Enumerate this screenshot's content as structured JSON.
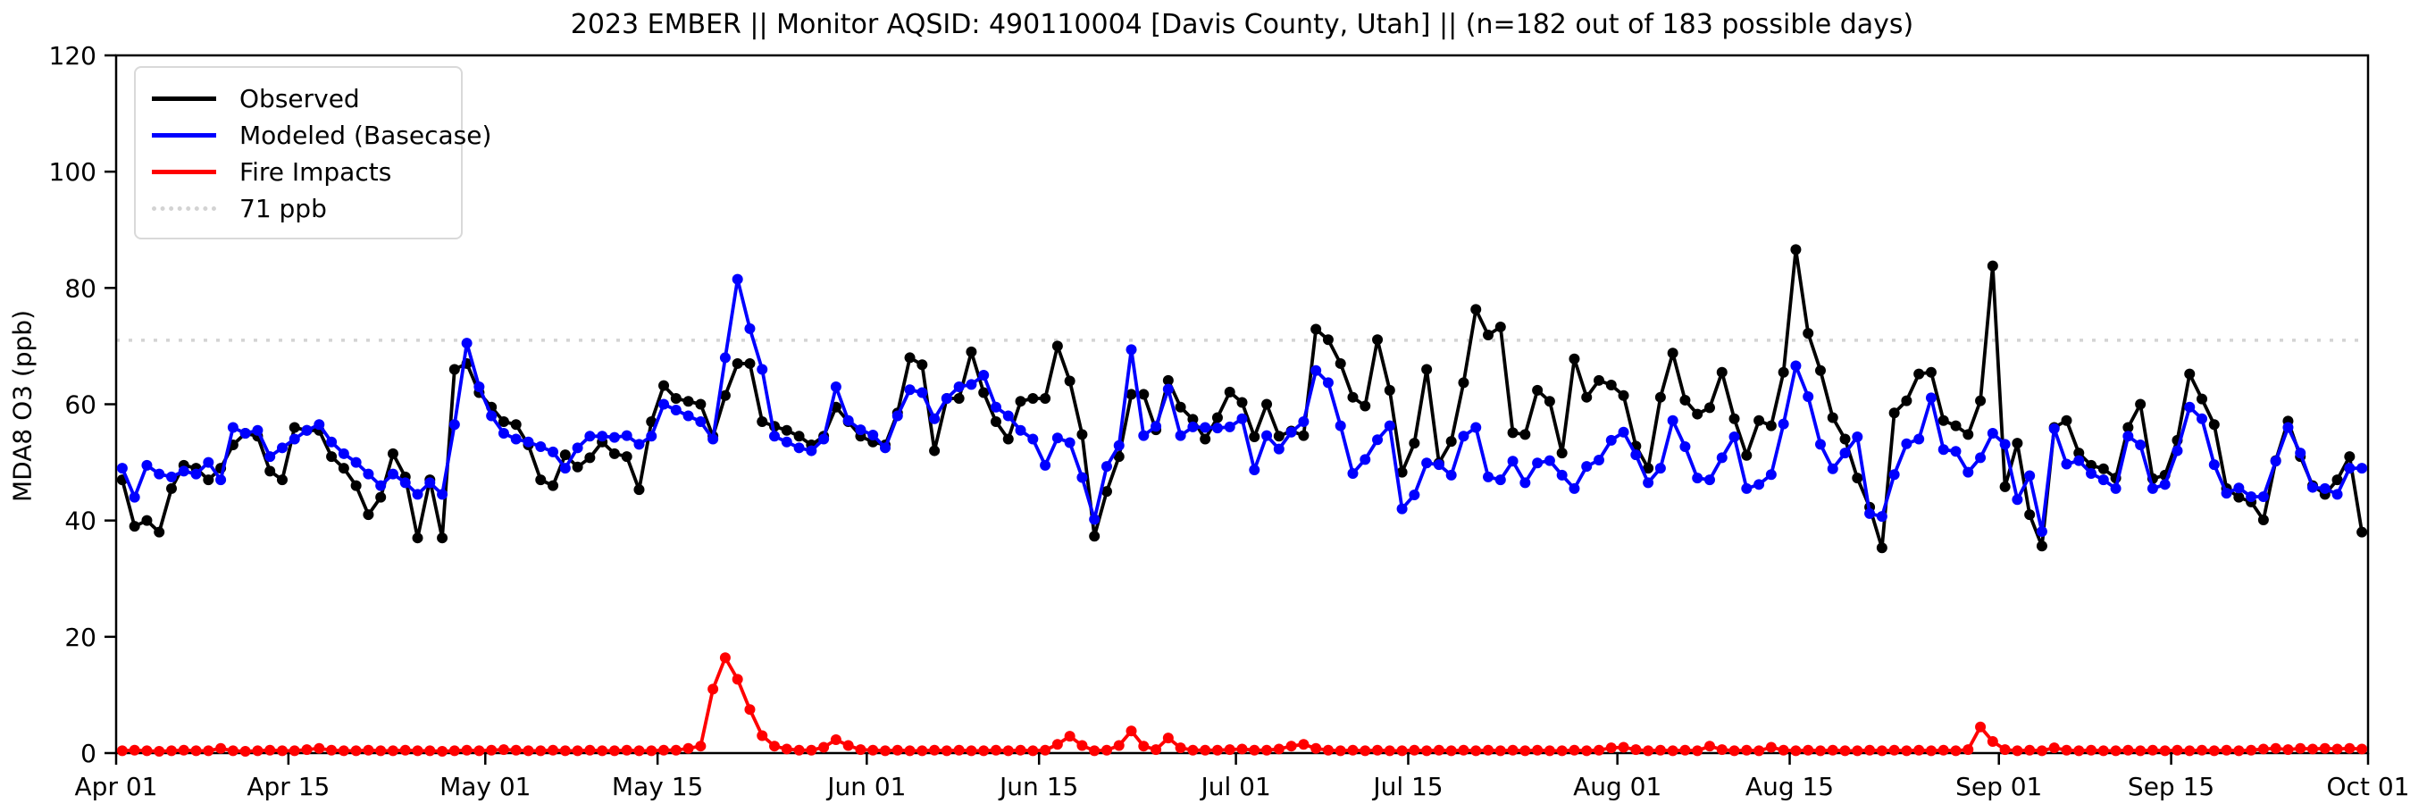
{
  "window": {
    "title": "2023 EMBER || Monitor AQSID: 490110004 [Davis County, Utah] || (n=182 out of 183 possible days)"
  },
  "chart_data": {
    "type": "line",
    "title": "2023 EMBER || Monitor AQSID: 490110004 [Davis County, Utah] || (n=182 out of 183 possible days)",
    "xlabel": "",
    "ylabel": "MDA8 O3 (ppb)",
    "ylim": [
      0,
      120
    ],
    "yticks": [
      0,
      20,
      40,
      60,
      80,
      100,
      120
    ],
    "x_unit": "day_index_from_2023-04-01",
    "x_range": [
      0,
      183
    ],
    "start_date": "2023-04-01",
    "end_date": "2023-09-30",
    "n_days_shown": 182,
    "n_days_possible": 183,
    "grid": false,
    "legend_position": "upper-left",
    "threshold": {
      "value": 71,
      "label": "71 ppb",
      "color": "#d3d3d3",
      "style": "dotted"
    },
    "xticks": [
      {
        "label": "Apr 01",
        "day": 0
      },
      {
        "label": "Apr 15",
        "day": 14
      },
      {
        "label": "May 01",
        "day": 30
      },
      {
        "label": "May 15",
        "day": 44
      },
      {
        "label": "Jun 01",
        "day": 61
      },
      {
        "label": "Jun 15",
        "day": 75
      },
      {
        "label": "Jul 01",
        "day": 91
      },
      {
        "label": "Jul 15",
        "day": 105
      },
      {
        "label": "Aug 01",
        "day": 122
      },
      {
        "label": "Aug 15",
        "day": 136
      },
      {
        "label": "Sep 01",
        "day": 153
      },
      {
        "label": "Sep 15",
        "day": 167
      },
      {
        "label": "Oct 01",
        "day": 183
      }
    ],
    "series": [
      {
        "name": "Observed",
        "color": "#000000",
        "marker": "circle",
        "values": [
          47,
          39,
          40,
          38,
          45.5,
          49.5,
          49,
          47,
          49,
          53,
          55,
          54.5,
          48.5,
          47,
          56,
          55.5,
          55.5,
          51,
          49,
          46,
          41,
          44,
          51.5,
          47.5,
          37,
          47,
          37,
          66,
          67,
          62,
          59.5,
          57,
          56.5,
          53,
          47,
          46,
          51.3,
          49.2,
          50.8,
          53.5,
          51.5,
          51,
          45.3,
          57,
          63.2,
          61,
          60.5,
          60,
          54.5,
          61.5,
          67,
          67,
          57,
          56.2,
          55.5,
          54.5,
          53,
          54.5,
          59.5,
          57,
          54.5,
          53.5,
          53,
          58.5,
          68,
          66.8,
          52,
          61,
          61,
          69,
          62,
          57,
          54,
          60.5,
          61,
          61,
          70,
          64,
          54.8,
          37.3,
          45,
          51,
          61.7,
          61.7,
          55.6,
          64.1,
          59.5,
          57.4,
          54,
          57.7,
          62.1,
          60.3,
          54.4,
          60,
          54.5,
          55.4,
          54.6,
          72.9,
          71.1,
          67,
          61.2,
          59.7,
          71.1,
          62.4,
          48.3,
          53.3,
          66,
          49.9,
          53.6,
          63.7,
          76.3,
          71.9,
          73.3,
          55.1,
          54.8,
          62.4,
          60.5,
          51.6,
          67.8,
          61.2,
          64.1,
          63.3,
          61.5,
          52.8,
          49,
          61.2,
          68.8,
          60.7,
          58.3,
          59.4,
          65.5,
          57.5,
          51.2,
          57.2,
          56.3,
          65.5,
          86.6,
          72.2,
          65.8,
          57.7,
          54,
          47.3,
          42.3,
          35.3,
          58.5,
          60.6,
          65.2,
          65.5,
          57.2,
          56.3,
          54.8,
          60.6,
          83.8,
          45.8,
          53.3,
          41,
          35.6,
          56,
          57.2,
          51.6,
          49.5,
          48.9,
          47.3,
          56,
          60,
          47.2,
          47.8,
          53.8,
          65.2,
          60.9,
          56.5,
          45.5,
          44,
          43.2,
          40.1,
          50.3,
          57.1,
          51,
          46,
          44.5,
          47,
          51,
          38
        ]
      },
      {
        "name": "Modeled (Basecase)",
        "color": "#0000ff",
        "marker": "circle",
        "values": [
          49,
          44,
          49.5,
          48,
          47.5,
          48.5,
          48,
          50,
          47,
          56,
          55,
          55.5,
          51,
          52.5,
          54,
          55.5,
          56.5,
          53.5,
          51.5,
          50,
          48,
          46,
          48,
          46.5,
          44.5,
          46.5,
          44.5,
          56.5,
          70.5,
          63,
          58,
          55,
          54,
          53.5,
          52.7,
          51.8,
          49,
          52.5,
          54.5,
          54.5,
          54.3,
          54.6,
          53.1,
          54.5,
          60,
          59,
          58,
          57,
          54,
          68,
          81.5,
          73,
          66,
          54.5,
          53.5,
          52.5,
          52,
          54,
          63,
          57.2,
          55.6,
          54.7,
          52.5,
          58,
          62.5,
          62,
          57.5,
          61,
          63,
          63.4,
          65,
          59.5,
          58,
          55.5,
          54,
          49.5,
          54.2,
          53.4,
          47.4,
          40.2,
          49.3,
          52.9,
          69.4,
          54.6,
          56.2,
          62.6,
          54.6,
          56.1,
          56,
          55.9,
          56.1,
          57.5,
          48.7,
          54.6,
          52.3,
          55.2,
          57,
          65.8,
          63.7,
          56.3,
          48.1,
          50.5,
          53.9,
          56.3,
          42,
          44.4,
          49.9,
          49.6,
          47.8,
          54.5,
          56,
          47.5,
          47,
          50.2,
          46.5,
          49.9,
          50.3,
          47.8,
          45.5,
          49.3,
          50.4,
          53.8,
          55.2,
          51.3,
          46.5,
          49,
          57.2,
          52.7,
          47.3,
          47,
          50.8,
          54.4,
          45.5,
          46.2,
          47.9,
          56.6,
          66.6,
          61.3,
          53.1,
          48.9,
          51.6,
          54.4,
          41.2,
          40.7,
          47.9,
          53.2,
          54,
          61.1,
          52.2,
          51.9,
          48.3,
          50.8,
          55,
          53.1,
          43.6,
          47.7,
          38.1,
          55.8,
          49.7,
          50.3,
          48.1,
          47,
          45.5,
          54.5,
          53,
          45.5,
          46.2,
          52,
          59.5,
          57.5,
          49.6,
          44.7,
          45.6,
          44.1,
          44.1,
          50.2,
          56,
          51.6,
          45.7,
          45.5,
          44.5,
          49,
          49
        ]
      },
      {
        "name": "Fire Impacts",
        "color": "#ff0000",
        "marker": "circle",
        "values": [
          0.4,
          0.5,
          0.4,
          0.3,
          0.4,
          0.5,
          0.4,
          0.4,
          0.8,
          0.4,
          0.3,
          0.4,
          0.5,
          0.4,
          0.4,
          0.6,
          0.8,
          0.5,
          0.4,
          0.4,
          0.5,
          0.4,
          0.4,
          0.5,
          0.4,
          0.4,
          0.3,
          0.4,
          0.5,
          0.4,
          0.5,
          0.6,
          0.5,
          0.4,
          0.4,
          0.5,
          0.4,
          0.4,
          0.5,
          0.4,
          0.4,
          0.5,
          0.4,
          0.4,
          0.5,
          0.5,
          0.8,
          1.2,
          11,
          16.4,
          12.7,
          7.5,
          3,
          1.2,
          0.7,
          0.5,
          0.5,
          1,
          2.3,
          1.3,
          0.6,
          0.5,
          0.4,
          0.5,
          0.4,
          0.4,
          0.5,
          0.4,
          0.5,
          0.4,
          0.4,
          0.5,
          0.4,
          0.5,
          0.4,
          0.5,
          1.5,
          2.9,
          1.3,
          0.4,
          0.5,
          1.3,
          3.8,
          1.2,
          0.6,
          2.6,
          0.9,
          0.5,
          0.5,
          0.5,
          0.6,
          0.7,
          0.5,
          0.5,
          0.7,
          1.2,
          1.5,
          0.8,
          0.5,
          0.4,
          0.5,
          0.4,
          0.5,
          0.4,
          0.4,
          0.5,
          0.4,
          0.5,
          0.4,
          0.5,
          0.4,
          0.5,
          0.4,
          0.5,
          0.4,
          0.5,
          0.4,
          0.4,
          0.5,
          0.4,
          0.5,
          0.9,
          1,
          0.6,
          0.4,
          0.5,
          0.4,
          0.5,
          0.4,
          1.2,
          0.6,
          0.4,
          0.5,
          0.4,
          1,
          0.5,
          0.4,
          0.5,
          0.4,
          0.5,
          0.4,
          0.4,
          0.5,
          0.4,
          0.5,
          0.4,
          0.5,
          0.4,
          0.5,
          0.4,
          0.6,
          4.5,
          2,
          0.6,
          0.4,
          0.5,
          0.4,
          0.9,
          0.5,
          0.4,
          0.5,
          0.4,
          0.4,
          0.5,
          0.4,
          0.5,
          0.4,
          0.5,
          0.4,
          0.5,
          0.4,
          0.5,
          0.4,
          0.5,
          0.7,
          0.8,
          0.6,
          0.8,
          0.7,
          0.8,
          0.7,
          0.8,
          0.7
        ]
      }
    ],
    "legend_entries": [
      "Observed",
      "Modeled (Basecase)",
      "Fire Impacts",
      "71 ppb"
    ]
  },
  "colors": {
    "observed": "#000000",
    "modeled": "#0000ff",
    "fire": "#ff0000",
    "threshold": "#d3d3d3",
    "axis": "#000000",
    "background": "#ffffff"
  }
}
